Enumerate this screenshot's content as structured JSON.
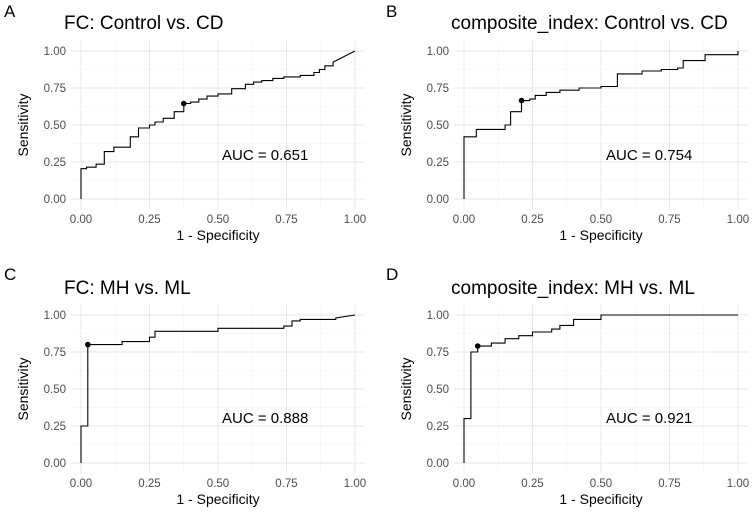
{
  "chart_data": [
    {
      "panel": "A",
      "type": "line",
      "title": "FC: Control vs. CD",
      "xlabel": "1 - Specificity",
      "ylabel": "Sensitivity",
      "xlim": [
        0,
        1
      ],
      "ylim": [
        0,
        1
      ],
      "xticks": [
        "0.00",
        "0.25",
        "0.50",
        "0.75",
        "1.00"
      ],
      "yticks": [
        "0.00",
        "0.25",
        "0.50",
        "0.75",
        "1.00"
      ],
      "annotation": "AUC = 0.651",
      "auc": 0.651,
      "optimal_point": [
        0.375,
        0.645
      ],
      "x": [
        0,
        0,
        0.02,
        0.02,
        0.055,
        0.055,
        0.085,
        0.085,
        0.12,
        0.12,
        0.18,
        0.18,
        0.21,
        0.21,
        0.25,
        0.25,
        0.27,
        0.27,
        0.3,
        0.3,
        0.34,
        0.34,
        0.375,
        0.375,
        0.4,
        0.4,
        0.43,
        0.43,
        0.46,
        0.46,
        0.5,
        0.5,
        0.55,
        0.55,
        0.6,
        0.6,
        0.63,
        0.63,
        0.66,
        0.66,
        0.7,
        0.7,
        0.74,
        0.74,
        0.8,
        0.8,
        0.85,
        0.85,
        0.87,
        0.87,
        0.89,
        0.89,
        0.92,
        0.92,
        1.0
      ],
      "y": [
        0,
        0.205,
        0.205,
        0.215,
        0.215,
        0.235,
        0.235,
        0.32,
        0.32,
        0.35,
        0.35,
        0.42,
        0.42,
        0.48,
        0.48,
        0.5,
        0.5,
        0.52,
        0.52,
        0.545,
        0.545,
        0.59,
        0.59,
        0.645,
        0.645,
        0.655,
        0.655,
        0.675,
        0.675,
        0.695,
        0.695,
        0.71,
        0.71,
        0.745,
        0.745,
        0.775,
        0.775,
        0.79,
        0.79,
        0.8,
        0.8,
        0.815,
        0.815,
        0.825,
        0.825,
        0.835,
        0.835,
        0.855,
        0.855,
        0.875,
        0.875,
        0.9,
        0.9,
        0.925,
        1.0
      ]
    },
    {
      "panel": "B",
      "type": "line",
      "title": "composite_index: Control vs. CD",
      "xlabel": "1 - Specificity",
      "ylabel": "Sensitivity",
      "xlim": [
        0,
        1
      ],
      "ylim": [
        0,
        1
      ],
      "xticks": [
        "0.00",
        "0.25",
        "0.50",
        "0.75",
        "1.00"
      ],
      "yticks": [
        "0.00",
        "0.25",
        "0.50",
        "0.75",
        "1.00"
      ],
      "annotation": "AUC = 0.754",
      "auc": 0.754,
      "optimal_point": [
        0.21,
        0.665
      ],
      "x": [
        0,
        0,
        0.045,
        0.045,
        0.15,
        0.15,
        0.17,
        0.17,
        0.21,
        0.21,
        0.24,
        0.24,
        0.26,
        0.26,
        0.3,
        0.3,
        0.35,
        0.35,
        0.42,
        0.42,
        0.5,
        0.5,
        0.56,
        0.56,
        0.65,
        0.65,
        0.72,
        0.72,
        0.78,
        0.78,
        0.8,
        0.8,
        0.88,
        0.88,
        1.0,
        1.0
      ],
      "y": [
        0,
        0.42,
        0.42,
        0.47,
        0.47,
        0.5,
        0.5,
        0.59,
        0.59,
        0.665,
        0.665,
        0.675,
        0.675,
        0.7,
        0.7,
        0.72,
        0.72,
        0.735,
        0.735,
        0.75,
        0.75,
        0.76,
        0.76,
        0.845,
        0.845,
        0.865,
        0.865,
        0.875,
        0.875,
        0.885,
        0.885,
        0.935,
        0.935,
        0.975,
        0.975,
        1.0
      ]
    },
    {
      "panel": "C",
      "type": "line",
      "title": "FC: MH vs. ML",
      "xlabel": "1 - Specificity",
      "ylabel": "Sensitivity",
      "xlim": [
        0,
        1
      ],
      "ylim": [
        0,
        1
      ],
      "xticks": [
        "0.00",
        "0.25",
        "0.50",
        "0.75",
        "1.00"
      ],
      "yticks": [
        "0.00",
        "0.25",
        "0.50",
        "0.75",
        "1.00"
      ],
      "annotation": "AUC = 0.888",
      "auc": 0.888,
      "optimal_point": [
        0.025,
        0.8
      ],
      "x": [
        0,
        0,
        0.025,
        0.025,
        0.15,
        0.15,
        0.25,
        0.25,
        0.27,
        0.27,
        0.5,
        0.5,
        0.74,
        0.74,
        0.77,
        0.77,
        0.8,
        0.8,
        0.93,
        0.93,
        1.0
      ],
      "y": [
        0,
        0.25,
        0.25,
        0.8,
        0.8,
        0.82,
        0.82,
        0.85,
        0.85,
        0.89,
        0.89,
        0.91,
        0.91,
        0.925,
        0.925,
        0.96,
        0.96,
        0.97,
        0.97,
        0.98,
        1.0
      ]
    },
    {
      "panel": "D",
      "type": "line",
      "title": "composite_index: MH vs. ML",
      "xlabel": "1 - Specificity",
      "ylabel": "Sensitivity",
      "xlim": [
        0,
        1
      ],
      "ylim": [
        0,
        1
      ],
      "xticks": [
        "0.00",
        "0.25",
        "0.50",
        "0.75",
        "1.00"
      ],
      "yticks": [
        "0.00",
        "0.25",
        "0.50",
        "0.75",
        "1.00"
      ],
      "annotation": "AUC = 0.921",
      "auc": 0.921,
      "optimal_point": [
        0.05,
        0.79
      ],
      "x": [
        0,
        0,
        0.025,
        0.025,
        0.05,
        0.05,
        0.1,
        0.1,
        0.15,
        0.15,
        0.2,
        0.2,
        0.25,
        0.25,
        0.32,
        0.32,
        0.35,
        0.35,
        0.4,
        0.4,
        0.5,
        0.5,
        1.0
      ],
      "y": [
        0,
        0.3,
        0.3,
        0.75,
        0.75,
        0.79,
        0.79,
        0.81,
        0.81,
        0.84,
        0.84,
        0.86,
        0.86,
        0.885,
        0.885,
        0.905,
        0.905,
        0.93,
        0.93,
        0.97,
        0.97,
        1.0,
        1.0
      ]
    }
  ]
}
